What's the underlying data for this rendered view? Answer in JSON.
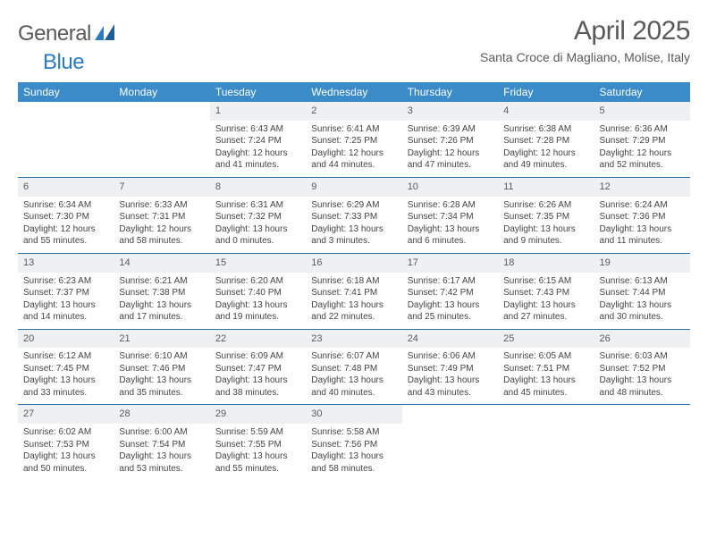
{
  "brand": {
    "part1": "General",
    "part2": "Blue"
  },
  "title": "April 2025",
  "location": "Santa Croce di Magliano, Molise, Italy",
  "weekdays": [
    "Sunday",
    "Monday",
    "Tuesday",
    "Wednesday",
    "Thursday",
    "Friday",
    "Saturday"
  ],
  "colors": {
    "header_bg": "#3b8bc9",
    "header_text": "#ffffff",
    "daynum_bg": "#eef0f2",
    "text_main": "#5a5a5a",
    "rule": "#2b6fa8",
    "brand_blue": "#2b7bbf"
  },
  "typography": {
    "title_fontsize": 30,
    "location_fontsize": 14,
    "weekday_fontsize": 12,
    "daynum_fontsize": 11,
    "body_fontsize": 10
  },
  "weeks": [
    [
      {
        "empty": true
      },
      {
        "empty": true
      },
      {
        "num": "1",
        "sunrise": "Sunrise: 6:43 AM",
        "sunset": "Sunset: 7:24 PM",
        "daylight1": "Daylight: 12 hours",
        "daylight2": "and 41 minutes."
      },
      {
        "num": "2",
        "sunrise": "Sunrise: 6:41 AM",
        "sunset": "Sunset: 7:25 PM",
        "daylight1": "Daylight: 12 hours",
        "daylight2": "and 44 minutes."
      },
      {
        "num": "3",
        "sunrise": "Sunrise: 6:39 AM",
        "sunset": "Sunset: 7:26 PM",
        "daylight1": "Daylight: 12 hours",
        "daylight2": "and 47 minutes."
      },
      {
        "num": "4",
        "sunrise": "Sunrise: 6:38 AM",
        "sunset": "Sunset: 7:28 PM",
        "daylight1": "Daylight: 12 hours",
        "daylight2": "and 49 minutes."
      },
      {
        "num": "5",
        "sunrise": "Sunrise: 6:36 AM",
        "sunset": "Sunset: 7:29 PM",
        "daylight1": "Daylight: 12 hours",
        "daylight2": "and 52 minutes."
      }
    ],
    [
      {
        "num": "6",
        "sunrise": "Sunrise: 6:34 AM",
        "sunset": "Sunset: 7:30 PM",
        "daylight1": "Daylight: 12 hours",
        "daylight2": "and 55 minutes."
      },
      {
        "num": "7",
        "sunrise": "Sunrise: 6:33 AM",
        "sunset": "Sunset: 7:31 PM",
        "daylight1": "Daylight: 12 hours",
        "daylight2": "and 58 minutes."
      },
      {
        "num": "8",
        "sunrise": "Sunrise: 6:31 AM",
        "sunset": "Sunset: 7:32 PM",
        "daylight1": "Daylight: 13 hours",
        "daylight2": "and 0 minutes."
      },
      {
        "num": "9",
        "sunrise": "Sunrise: 6:29 AM",
        "sunset": "Sunset: 7:33 PM",
        "daylight1": "Daylight: 13 hours",
        "daylight2": "and 3 minutes."
      },
      {
        "num": "10",
        "sunrise": "Sunrise: 6:28 AM",
        "sunset": "Sunset: 7:34 PM",
        "daylight1": "Daylight: 13 hours",
        "daylight2": "and 6 minutes."
      },
      {
        "num": "11",
        "sunrise": "Sunrise: 6:26 AM",
        "sunset": "Sunset: 7:35 PM",
        "daylight1": "Daylight: 13 hours",
        "daylight2": "and 9 minutes."
      },
      {
        "num": "12",
        "sunrise": "Sunrise: 6:24 AM",
        "sunset": "Sunset: 7:36 PM",
        "daylight1": "Daylight: 13 hours",
        "daylight2": "and 11 minutes."
      }
    ],
    [
      {
        "num": "13",
        "sunrise": "Sunrise: 6:23 AM",
        "sunset": "Sunset: 7:37 PM",
        "daylight1": "Daylight: 13 hours",
        "daylight2": "and 14 minutes."
      },
      {
        "num": "14",
        "sunrise": "Sunrise: 6:21 AM",
        "sunset": "Sunset: 7:38 PM",
        "daylight1": "Daylight: 13 hours",
        "daylight2": "and 17 minutes."
      },
      {
        "num": "15",
        "sunrise": "Sunrise: 6:20 AM",
        "sunset": "Sunset: 7:40 PM",
        "daylight1": "Daylight: 13 hours",
        "daylight2": "and 19 minutes."
      },
      {
        "num": "16",
        "sunrise": "Sunrise: 6:18 AM",
        "sunset": "Sunset: 7:41 PM",
        "daylight1": "Daylight: 13 hours",
        "daylight2": "and 22 minutes."
      },
      {
        "num": "17",
        "sunrise": "Sunrise: 6:17 AM",
        "sunset": "Sunset: 7:42 PM",
        "daylight1": "Daylight: 13 hours",
        "daylight2": "and 25 minutes."
      },
      {
        "num": "18",
        "sunrise": "Sunrise: 6:15 AM",
        "sunset": "Sunset: 7:43 PM",
        "daylight1": "Daylight: 13 hours",
        "daylight2": "and 27 minutes."
      },
      {
        "num": "19",
        "sunrise": "Sunrise: 6:13 AM",
        "sunset": "Sunset: 7:44 PM",
        "daylight1": "Daylight: 13 hours",
        "daylight2": "and 30 minutes."
      }
    ],
    [
      {
        "num": "20",
        "sunrise": "Sunrise: 6:12 AM",
        "sunset": "Sunset: 7:45 PM",
        "daylight1": "Daylight: 13 hours",
        "daylight2": "and 33 minutes."
      },
      {
        "num": "21",
        "sunrise": "Sunrise: 6:10 AM",
        "sunset": "Sunset: 7:46 PM",
        "daylight1": "Daylight: 13 hours",
        "daylight2": "and 35 minutes."
      },
      {
        "num": "22",
        "sunrise": "Sunrise: 6:09 AM",
        "sunset": "Sunset: 7:47 PM",
        "daylight1": "Daylight: 13 hours",
        "daylight2": "and 38 minutes."
      },
      {
        "num": "23",
        "sunrise": "Sunrise: 6:07 AM",
        "sunset": "Sunset: 7:48 PM",
        "daylight1": "Daylight: 13 hours",
        "daylight2": "and 40 minutes."
      },
      {
        "num": "24",
        "sunrise": "Sunrise: 6:06 AM",
        "sunset": "Sunset: 7:49 PM",
        "daylight1": "Daylight: 13 hours",
        "daylight2": "and 43 minutes."
      },
      {
        "num": "25",
        "sunrise": "Sunrise: 6:05 AM",
        "sunset": "Sunset: 7:51 PM",
        "daylight1": "Daylight: 13 hours",
        "daylight2": "and 45 minutes."
      },
      {
        "num": "26",
        "sunrise": "Sunrise: 6:03 AM",
        "sunset": "Sunset: 7:52 PM",
        "daylight1": "Daylight: 13 hours",
        "daylight2": "and 48 minutes."
      }
    ],
    [
      {
        "num": "27",
        "sunrise": "Sunrise: 6:02 AM",
        "sunset": "Sunset: 7:53 PM",
        "daylight1": "Daylight: 13 hours",
        "daylight2": "and 50 minutes."
      },
      {
        "num": "28",
        "sunrise": "Sunrise: 6:00 AM",
        "sunset": "Sunset: 7:54 PM",
        "daylight1": "Daylight: 13 hours",
        "daylight2": "and 53 minutes."
      },
      {
        "num": "29",
        "sunrise": "Sunrise: 5:59 AM",
        "sunset": "Sunset: 7:55 PM",
        "daylight1": "Daylight: 13 hours",
        "daylight2": "and 55 minutes."
      },
      {
        "num": "30",
        "sunrise": "Sunrise: 5:58 AM",
        "sunset": "Sunset: 7:56 PM",
        "daylight1": "Daylight: 13 hours",
        "daylight2": "and 58 minutes."
      },
      {
        "empty": true
      },
      {
        "empty": true
      },
      {
        "empty": true
      }
    ]
  ]
}
